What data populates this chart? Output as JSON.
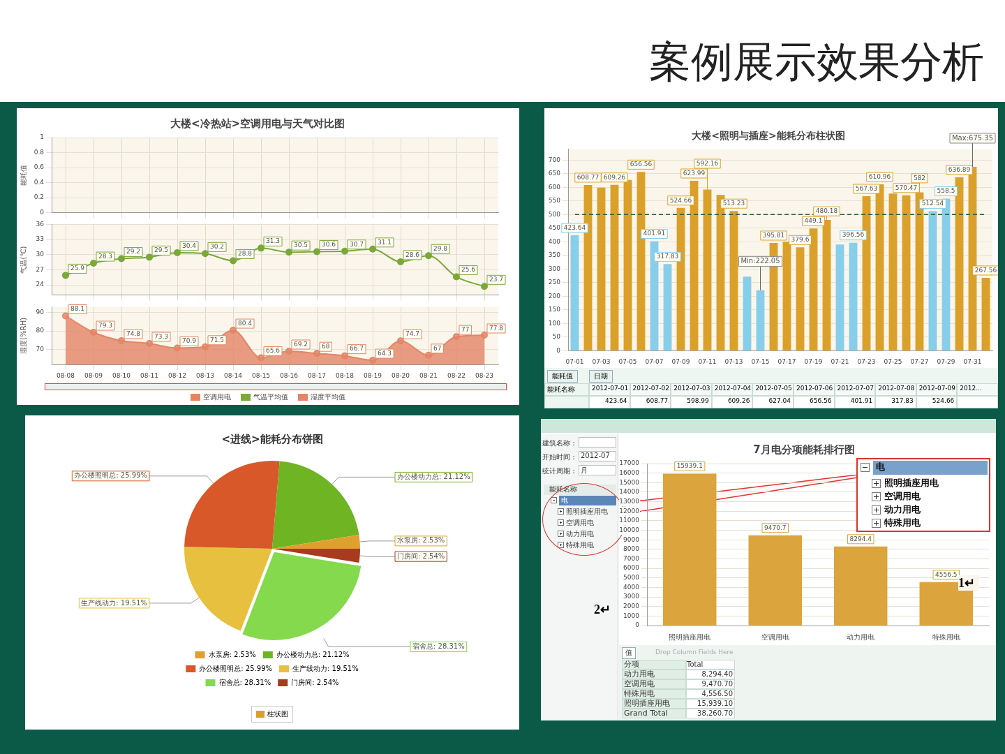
{
  "chart_data": [
    {
      "type": "other",
      "title": "案例展示效果分析"
    },
    {
      "type": "bar",
      "title": "大楼<冷热站>空调用电与天气对比图",
      "ylabel": "能耗值",
      "categories": [
        "08-08",
        "08-09",
        "08-10",
        "08-11",
        "08-12",
        "08-13",
        "08-14",
        "08-15",
        "08-16",
        "08-17",
        "08-18",
        "08-19",
        "08-20",
        "08-21",
        "08-22",
        "08-23"
      ],
      "series": [
        {
          "name": "空调用电",
          "color": "#e0875a",
          "values": [
            null,
            null,
            null,
            null,
            null,
            null,
            null,
            null,
            null,
            null,
            null,
            null,
            null,
            null,
            null,
            null
          ]
        }
      ],
      "ylim": [
        0,
        1
      ],
      "yticks": [
        0,
        0.2,
        0.4,
        0.6,
        0.8,
        1
      ],
      "grid": true,
      "legend": "bottom",
      "tick_labels": "y"
    },
    {
      "type": "line",
      "ylabel": "气温(℃)",
      "categories": [
        "08-08",
        "08-09",
        "08-10",
        "08-11",
        "08-12",
        "08-13",
        "08-14",
        "08-15",
        "08-16",
        "08-17",
        "08-18",
        "08-19",
        "08-20",
        "08-21",
        "08-22",
        "08-23"
      ],
      "series": [
        {
          "name": "气温平均值",
          "color": "#7aa83a",
          "values": [
            25.9,
            28.3,
            29.2,
            29.5,
            30.4,
            30.2,
            28.8,
            31.3,
            30.5,
            30.6,
            30.7,
            31.1,
            28.6,
            29.8,
            25.6,
            23.7
          ]
        }
      ],
      "ylim": [
        22,
        36
      ],
      "yticks": [
        24,
        27,
        30,
        33,
        36
      ],
      "grid": true,
      "legend": "bottom",
      "tick_labels": "y",
      "marker": "circle",
      "data_labels": true
    },
    {
      "type": "area",
      "ylabel": "湿度(%RH)",
      "categories": [
        "08-08",
        "08-09",
        "08-10",
        "08-11",
        "08-12",
        "08-13",
        "08-14",
        "08-15",
        "08-16",
        "08-17",
        "08-18",
        "08-19",
        "08-20",
        "08-21",
        "08-22",
        "08-23"
      ],
      "series": [
        {
          "name": "湿度平均值",
          "color": "#e38566",
          "values": [
            88.1,
            79.3,
            74.8,
            73.3,
            70.9,
            71.5,
            80.4,
            65.6,
            69.2,
            68,
            66.7,
            64.3,
            74.7,
            67,
            77,
            77.8
          ]
        }
      ],
      "ylim": [
        62,
        93
      ],
      "yticks": [
        70,
        80,
        90
      ],
      "grid": true,
      "legend": "bottom",
      "marker": "circle",
      "data_labels": true
    },
    {
      "type": "bar",
      "title": "大楼<照明与插座>能耗分布柱状图",
      "categories": [
        "07-01",
        null,
        "07-03",
        null,
        "07-05",
        null,
        "07-07",
        null,
        "07-09",
        null,
        "07-11",
        null,
        "07-13",
        null,
        "07-15",
        null,
        "07-17",
        null,
        "07-19",
        null,
        "07-21",
        null,
        "07-23",
        null,
        "07-25",
        null,
        "07-27",
        null,
        "07-29",
        null,
        "07-31",
        null
      ],
      "values": [
        423.64,
        608.77,
        598.99,
        609.26,
        627.04,
        656.56,
        401.91,
        317.83,
        524.66,
        623.99,
        592.16,
        572,
        513.23,
        272,
        222.05,
        395.81,
        400,
        379.6,
        449.1,
        480.18,
        390,
        396.56,
        567.63,
        610.96,
        577,
        570.47,
        582,
        512.54,
        558.5,
        636.89,
        675.35,
        267.56
      ],
      "colors": [
        "#87ceeb",
        "#daa02a",
        "#daa02a",
        "#daa02a",
        "#daa02a",
        "#daa02a",
        "#87ceeb",
        "#87ceeb",
        "#daa02a",
        "#daa02a",
        "#daa02a",
        "#daa02a",
        "#daa02a",
        "#87ceeb",
        "#87ceeb",
        "#daa02a",
        "#daa02a",
        "#daa02a",
        "#daa02a",
        "#daa02a",
        "#87ceeb",
        "#87ceeb",
        "#daa02a",
        "#daa02a",
        "#daa02a",
        "#daa02a",
        "#daa02a",
        "#87ceeb",
        "#87ceeb",
        "#daa02a",
        "#daa02a",
        "#daa02a"
      ],
      "value_labels": [
        "423.64",
        "608.77",
        null,
        "609.26",
        null,
        "656.56",
        "401.91",
        "317.83",
        "524.66",
        "623.99",
        "592.16",
        null,
        "513.23",
        null,
        null,
        "395.81",
        null,
        "379.6",
        "449.1",
        "480.18",
        null,
        "396.56",
        "567.63",
        "610.96",
        null,
        "570.47",
        "582",
        "512.54",
        "558.5",
        "636.89",
        null,
        "267.56"
      ],
      "ylim": [
        0,
        740
      ],
      "yticks": [
        0,
        50,
        100,
        150,
        200,
        250,
        300,
        350,
        400,
        450,
        500,
        550,
        600,
        650,
        700
      ],
      "grid": "y",
      "ref_lines": [
        {
          "axis": "y",
          "value": 500,
          "color": "#2e5e3e",
          "line_style": "dashed"
        }
      ],
      "annotations": [
        {
          "text": "Min:222.05",
          "x": "07-15",
          "y": 222.05
        },
        {
          "text": "Max:675.35",
          "x": "07-31",
          "y": 675.35
        },
        "能耗值",
        "日期",
        "能耗名称",
        "2012-07-01",
        "2012-07-02",
        "2012-07-03",
        "2012-07-04",
        "2012-07-05",
        "2012-07-06",
        "2012-07-07",
        "2012-07-08",
        "2012-07-09",
        "2012...",
        "423.64",
        "608.77",
        "598.99",
        "609.26",
        "627.04",
        "656.56",
        "401.91",
        "317.83",
        "524.66"
      ]
    },
    {
      "type": "pie",
      "title": "<进线>能耗分布饼图",
      "categories": [
        "水泵房",
        "办公楼动力总",
        "办公楼照明总",
        "生产线动力",
        "宿舍总",
        "门房间"
      ],
      "values": [
        2.53,
        21.12,
        25.99,
        19.51,
        28.31,
        2.54
      ],
      "colors": [
        "#e0a030",
        "#6fb423",
        "#d9582a",
        "#e8c040",
        "#84d94c",
        "#a83a1e"
      ],
      "value_labels": [
        "2.53%",
        "21.12%",
        "25.99%",
        "19.51%",
        "28.31%",
        "2.54%"
      ],
      "legend": "bottom",
      "annotations": [
        "柱状图"
      ]
    },
    {
      "type": "bar",
      "title": "7月电分项能耗排行图",
      "categories": [
        "照明插座用电",
        "空调用电",
        "动力用电",
        "特殊用电"
      ],
      "values": [
        15939.1,
        9470.7,
        8294.4,
        4556.5
      ],
      "color": "#dca43c",
      "ylim": [
        0,
        17000
      ],
      "yticks": [
        0,
        1000,
        2000,
        3000,
        4000,
        5000,
        6000,
        7000,
        8000,
        9000,
        10000,
        11000,
        12000,
        13000,
        14000,
        15000,
        16000,
        17000
      ],
      "grid": "y",
      "data_labels": true,
      "annotations": [
        "建筑名称：",
        "开始时间：",
        "2012-07",
        "统计周期：",
        "月",
        "能耗名称",
        "电",
        "照明插座用电",
        "空调用电",
        "动力用电",
        "特殊用电",
        "1↵",
        "2↵",
        "值",
        "Drop Column Fields Here",
        "分项",
        "Total",
        "动力用电",
        "8,294.40",
        "空调用电",
        "9,470.70",
        "特殊用电",
        "4,556.50",
        "照明插座用电",
        "15,939.10",
        "Grand Total",
        "38,260.70"
      ]
    }
  ]
}
